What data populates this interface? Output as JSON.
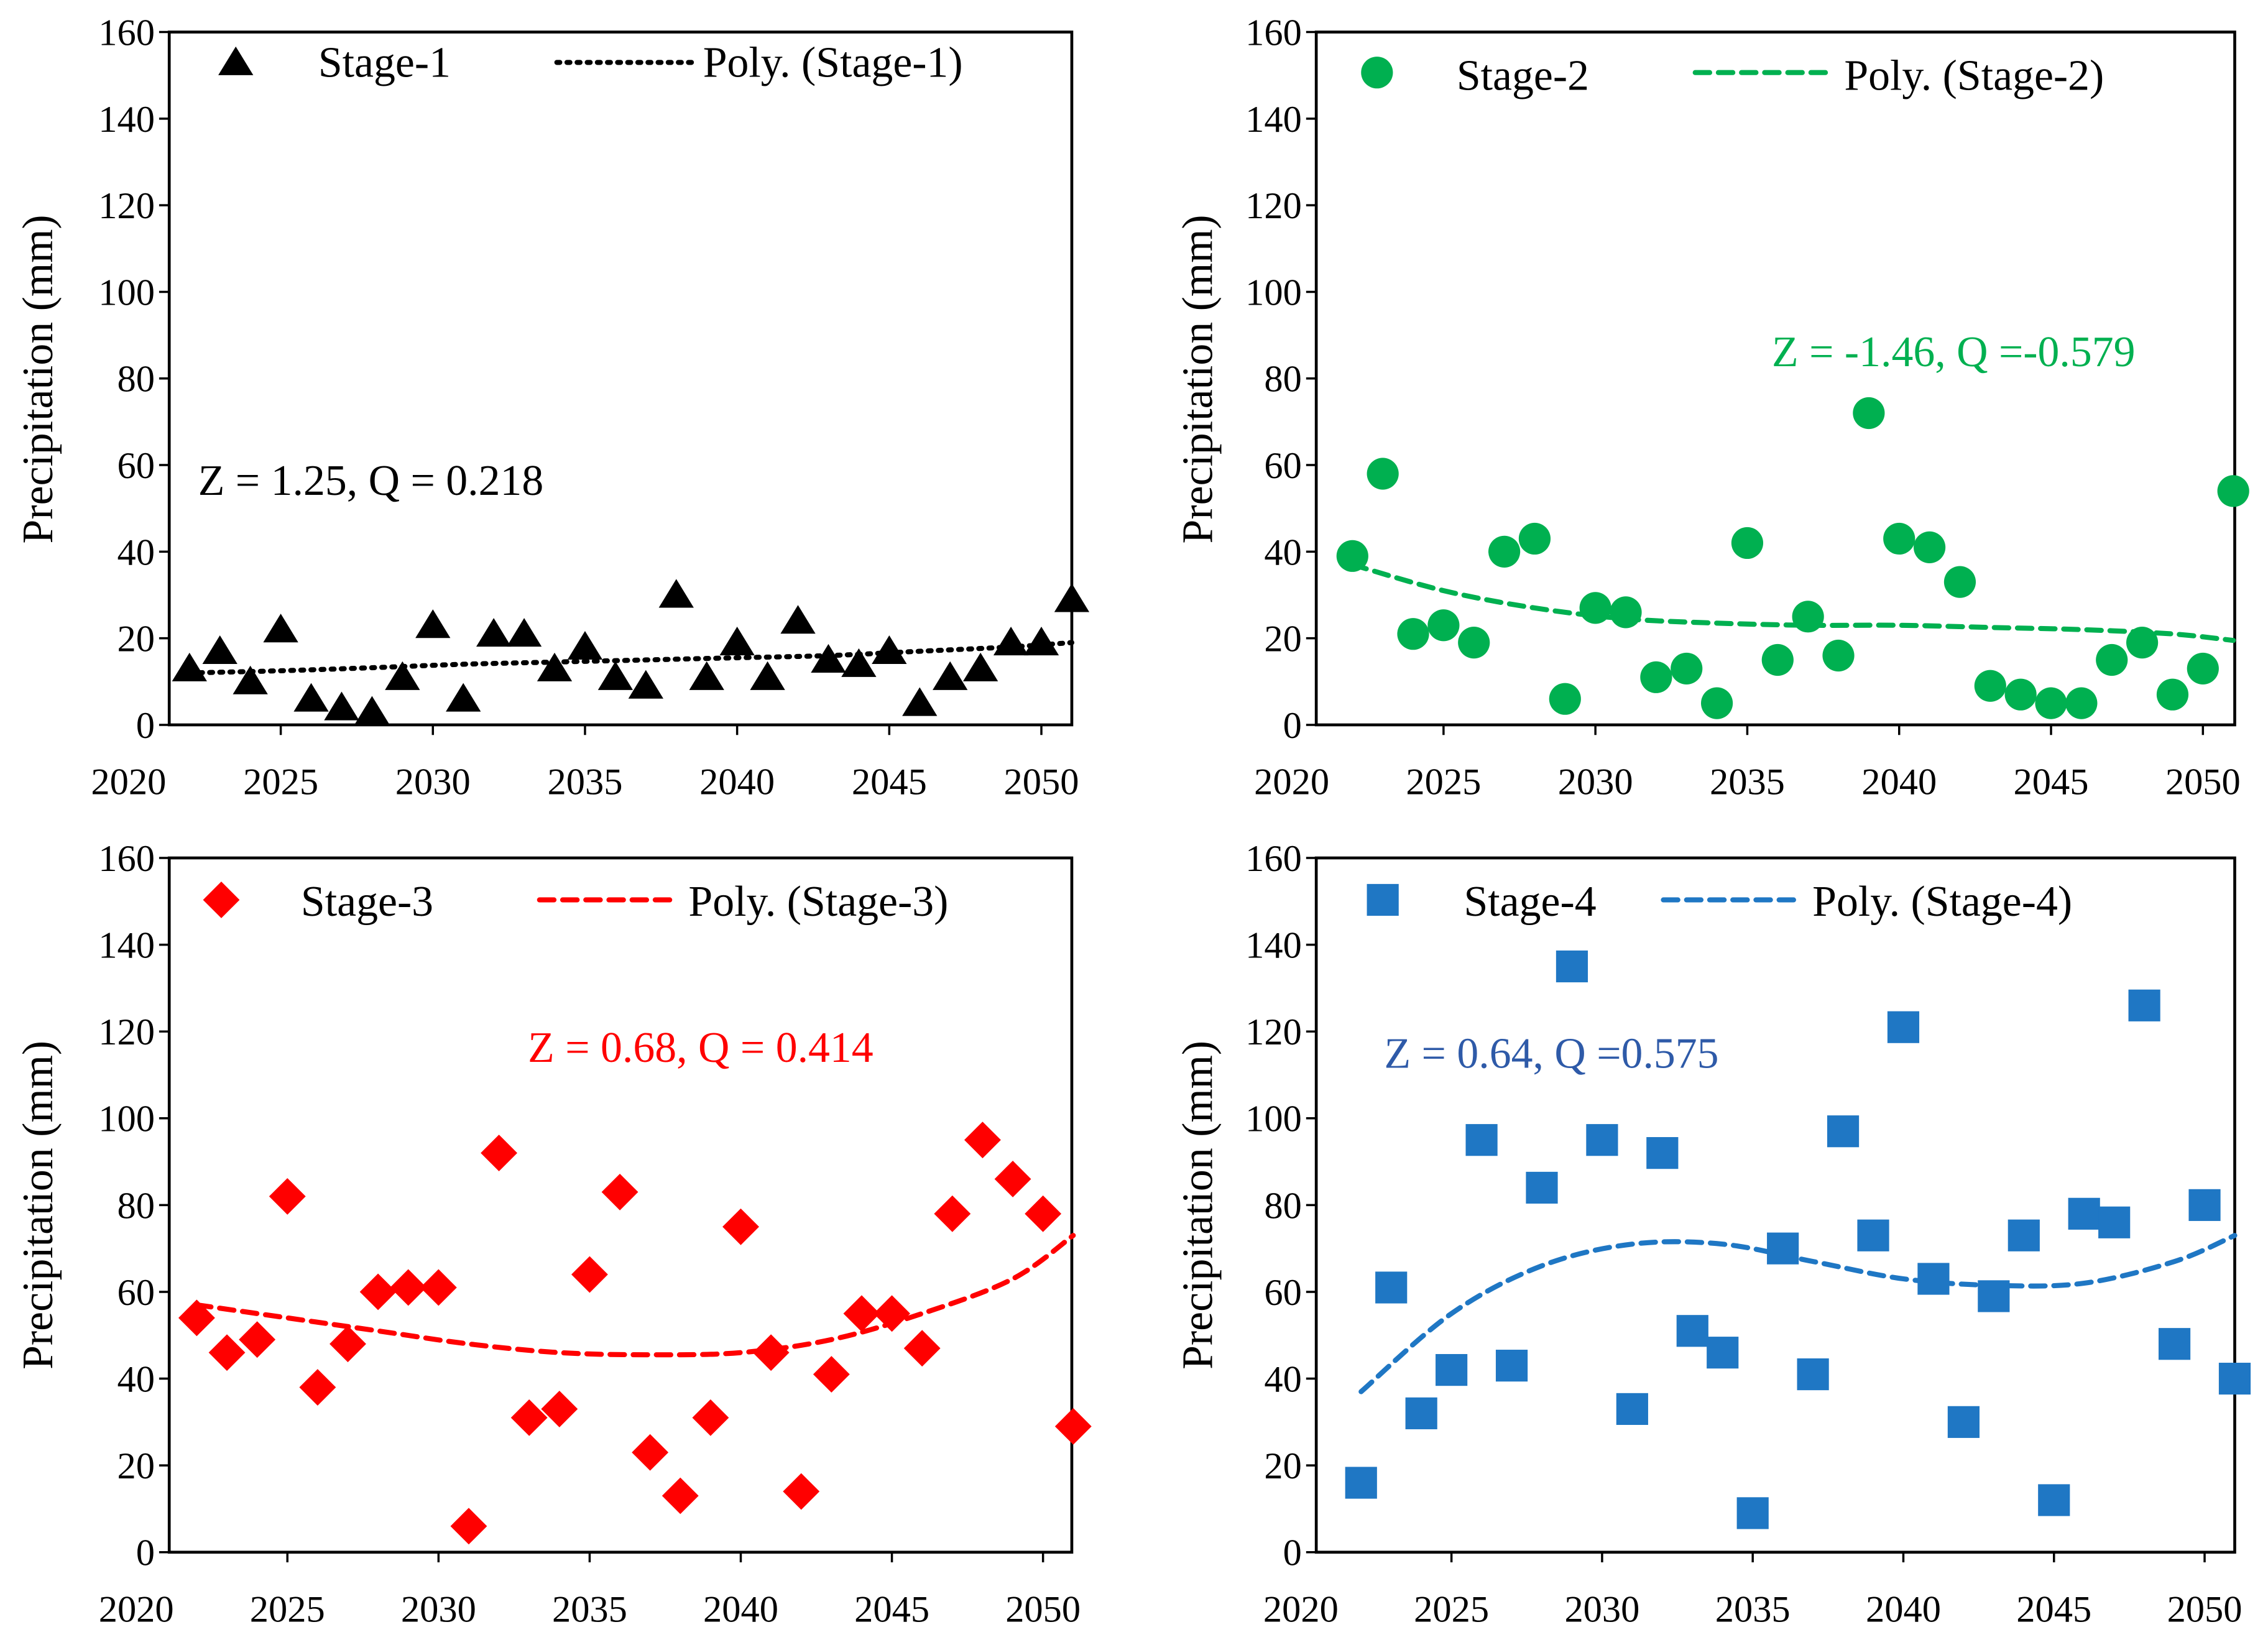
{
  "chart_data": [
    {
      "type": "scatter",
      "ylabel": "Precipitation (mm)",
      "ylim": [
        0,
        160
      ],
      "yticks": [
        0,
        20,
        40,
        60,
        80,
        100,
        120,
        140,
        160
      ],
      "xticks": [
        2020,
        2025,
        2030,
        2035,
        2040,
        2045,
        2050
      ],
      "annotation": "Z = 1.25, Q = 0.218",
      "color": "#000000",
      "annotation_color": "#000000",
      "marker": "triangle",
      "trend_style": "dotted",
      "legend": "top",
      "x": [
        2022,
        2023,
        2024,
        2025,
        2026,
        2027,
        2028,
        2029,
        2030,
        2031,
        2032,
        2033,
        2034,
        2035,
        2036,
        2037,
        2038,
        2039,
        2040,
        2041,
        2042,
        2043,
        2044,
        2045,
        2046,
        2047,
        2048,
        2049,
        2050,
        2051
      ],
      "series": [
        {
          "name": "Stage-1",
          "values": [
            13,
            17,
            10,
            22,
            6,
            4,
            3,
            11,
            23,
            6,
            21,
            21,
            13,
            18,
            11,
            9,
            30,
            11,
            19,
            11,
            24,
            15,
            14,
            17,
            5,
            11,
            13,
            19,
            19,
            29
          ]
        },
        {
          "name": "Poly. (Stage-1)",
          "x": [
            2022,
            2025,
            2028,
            2031,
            2034,
            2037,
            2040,
            2043,
            2046,
            2049,
            2051
          ],
          "values": [
            12,
            12.5,
            13.2,
            14,
            14.5,
            15,
            15.5,
            16,
            17,
            18,
            19
          ]
        }
      ]
    },
    {
      "type": "scatter",
      "ylabel": "Precipitation (mm)",
      "ylim": [
        0,
        160
      ],
      "yticks": [
        0,
        20,
        40,
        60,
        80,
        100,
        120,
        140,
        160
      ],
      "xticks": [
        2020,
        2025,
        2030,
        2035,
        2040,
        2045,
        2050
      ],
      "annotation": "Z = -1.46, Q =-0.579",
      "color": "#00B050",
      "annotation_color": "#00B050",
      "marker": "circle",
      "trend_style": "dashed",
      "legend": "top",
      "x": [
        2022,
        2023,
        2024,
        2025,
        2026,
        2027,
        2028,
        2029,
        2030,
        2031,
        2032,
        2033,
        2034,
        2035,
        2036,
        2037,
        2038,
        2039,
        2040,
        2041,
        2042,
        2043,
        2044,
        2045,
        2046,
        2047,
        2048,
        2049,
        2050,
        2051
      ],
      "series": [
        {
          "name": "Stage-2",
          "values": [
            39,
            58,
            21,
            23,
            19,
            40,
            43,
            6,
            27,
            26,
            11,
            13,
            5,
            42,
            15,
            25,
            16,
            72,
            43,
            41,
            33,
            9,
            7,
            5,
            5,
            15,
            19,
            7,
            13,
            54
          ]
        },
        {
          "name": "Poly. (Stage-2)",
          "x": [
            2022,
            2025,
            2028,
            2031,
            2034,
            2037,
            2040,
            2043,
            2046,
            2049,
            2051
          ],
          "values": [
            37,
            31,
            27,
            24.5,
            23.5,
            23,
            23,
            22.5,
            22,
            21,
            19.5
          ]
        }
      ]
    },
    {
      "type": "scatter",
      "ylabel": "Precipitation (mm)",
      "ylim": [
        0,
        160
      ],
      "yticks": [
        0,
        20,
        40,
        60,
        80,
        100,
        120,
        140,
        160
      ],
      "xticks": [
        2020,
        2025,
        2030,
        2035,
        2040,
        2045,
        2050
      ],
      "annotation": "Z = 0.68, Q = 0.414",
      "color": "#FF0000",
      "annotation_color": "#FF0000",
      "marker": "diamond",
      "trend_style": "dashed",
      "legend": "top",
      "x": [
        2022,
        2023,
        2024,
        2025,
        2026,
        2027,
        2028,
        2029,
        2030,
        2031,
        2032,
        2033,
        2034,
        2035,
        2036,
        2037,
        2038,
        2039,
        2040,
        2041,
        2042,
        2043,
        2044,
        2045,
        2046,
        2047,
        2048,
        2049,
        2050,
        2051
      ],
      "series": [
        {
          "name": "Stage-3",
          "values": [
            54,
            46,
            49,
            82,
            38,
            48,
            60,
            61,
            61,
            6,
            92,
            31,
            33,
            64,
            83,
            23,
            13,
            31,
            75,
            46,
            14,
            41,
            55,
            55,
            47,
            78,
            95,
            86,
            78,
            29
          ]
        },
        {
          "name": "Poly. (Stage-3)",
          "x": [
            2022,
            2025,
            2028,
            2031,
            2034,
            2037,
            2040,
            2043,
            2046,
            2049,
            2051
          ],
          "values": [
            57,
            54,
            51,
            48,
            46,
            45.5,
            46,
            49,
            55,
            63,
            73
          ]
        }
      ]
    },
    {
      "type": "scatter",
      "ylabel": "Precipitation (mm)",
      "ylim": [
        0,
        160
      ],
      "yticks": [
        0,
        20,
        40,
        60,
        80,
        100,
        120,
        140,
        160
      ],
      "xticks": [
        2020,
        2025,
        2030,
        2035,
        2040,
        2045,
        2050
      ],
      "annotation": "Z = 0.64, Q =0.575",
      "color": "#1F77C4",
      "annotation_color": "#2E5AA8",
      "marker": "square",
      "trend_style": "dashed",
      "legend": "top",
      "x": [
        2022,
        2023,
        2024,
        2025,
        2026,
        2027,
        2028,
        2029,
        2030,
        2031,
        2032,
        2033,
        2034,
        2035,
        2036,
        2037,
        2038,
        2039,
        2040,
        2041,
        2042,
        2043,
        2044,
        2045,
        2046,
        2047,
        2048,
        2049,
        2050,
        2051
      ],
      "series": [
        {
          "name": "Stage-4",
          "values": [
            16,
            61,
            32,
            42,
            95,
            43,
            84,
            135,
            95,
            33,
            92,
            51,
            46,
            9,
            70,
            41,
            97,
            73,
            121,
            63,
            30,
            59,
            73,
            12,
            78,
            76,
            126,
            48,
            80,
            40
          ]
        },
        {
          "name": "Poly. (Stage-4)",
          "x": [
            2022,
            2025,
            2028,
            2031,
            2034,
            2037,
            2040,
            2043,
            2046,
            2049,
            2051
          ],
          "values": [
            37,
            55,
            66,
            71,
            71,
            67,
            63,
            61.5,
            62,
            67,
            73
          ]
        }
      ]
    }
  ]
}
